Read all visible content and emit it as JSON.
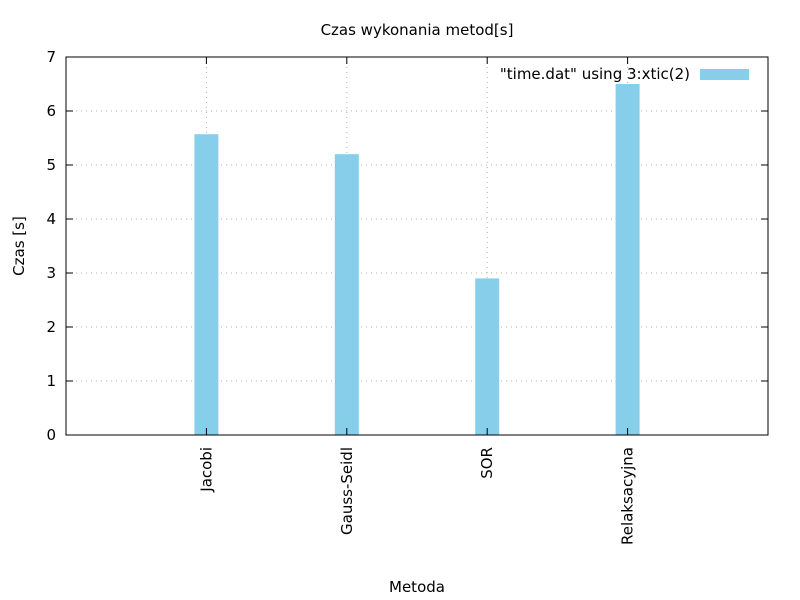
{
  "chart_data": {
    "type": "bar",
    "title": "Czas wykonania metod[s]",
    "xlabel": "Metoda",
    "ylabel": "Czas [s]",
    "categories": [
      "Jacobi",
      "Gauss-Seidl",
      "SOR",
      "Relaksacyjna"
    ],
    "series": [
      {
        "name": "\"time.dat\" using 3:xtic(2)",
        "values": [
          5.57,
          5.2,
          2.9,
          6.5
        ],
        "color": "#87ceeb"
      }
    ],
    "ylim": [
      0,
      7
    ],
    "yticks": [
      0,
      1,
      2,
      3,
      4,
      5,
      6,
      7
    ],
    "grid": true,
    "legend_position": "top-right"
  }
}
